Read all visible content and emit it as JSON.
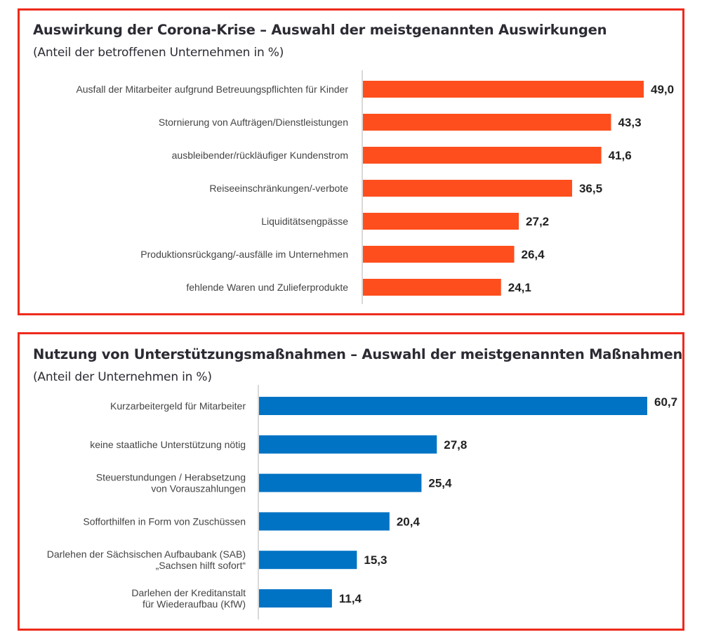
{
  "colors": {
    "frame": "#ee2a1b",
    "bar_orange": "#fe4e1d",
    "bar_blue": "#0073c4",
    "axis": "#d9d9d9"
  },
  "chart_data": [
    {
      "type": "bar",
      "orientation": "horizontal",
      "title": "Auswirkung der Corona-Krise – Auswahl der meistgenannten Auswirkungen",
      "subtitle": "(Anteil der betroffenen Unternehmen in %)",
      "xlabel": "",
      "ylabel": "",
      "unit": "%",
      "xlim": [
        0,
        50
      ],
      "grid": false,
      "legend": "none",
      "color": "#fe4e1d",
      "categories": [
        [
          "Ausfall der Mitarbeiter aufgrund Betreuungspflichten für Kinder"
        ],
        [
          "Stornierung von Aufträgen/Dienstleistungen"
        ],
        [
          "ausbleibender/rückläufiger Kundenstrom"
        ],
        [
          "Reiseeinschränkungen/-verbote"
        ],
        [
          "Liquiditätsengpässe"
        ],
        [
          "Produktionsrückgang/-ausfälle im Unternehmen"
        ],
        [
          "fehlende Waren und Zulieferprodukte"
        ]
      ],
      "values": [
        49.0,
        43.3,
        41.6,
        36.5,
        27.2,
        26.4,
        24.1
      ],
      "value_labels": [
        "49,0",
        "43,3",
        "41,6",
        "36,5",
        "27,2",
        "26,4",
        "24,1"
      ]
    },
    {
      "type": "bar",
      "orientation": "horizontal",
      "title": "Nutzung von Unterstützungsmaßnahmen – Auswahl der meistgenannten Maßnahmen",
      "subtitle": "(Anteil der Unternehmen in %)",
      "xlabel": "",
      "ylabel": "",
      "unit": "%",
      "xlim": [
        0,
        62
      ],
      "grid": false,
      "legend": "none",
      "color": "#0073c4",
      "categories": [
        [
          "Kurzarbeitergeld für Mitarbeiter"
        ],
        [
          "keine staatliche Unterstützung nötig"
        ],
        [
          "Steuerstundungen / Herabsetzung",
          "von Vorauszahlungen"
        ],
        [
          "Sofforthilfen in Form von Zuschüssen"
        ],
        [
          "Darlehen der Sächsischen Aufbaubank (SAB)",
          "„Sachsen hilft sofort“"
        ],
        [
          "Darlehen der Kreditanstalt",
          "für Wiederaufbau (KfW)"
        ]
      ],
      "values": [
        60.7,
        27.8,
        25.4,
        20.4,
        15.3,
        11.4
      ],
      "value_labels": [
        "60,7",
        "27,8",
        "25,4",
        "20,4",
        "15,3",
        "11,4"
      ]
    }
  ]
}
